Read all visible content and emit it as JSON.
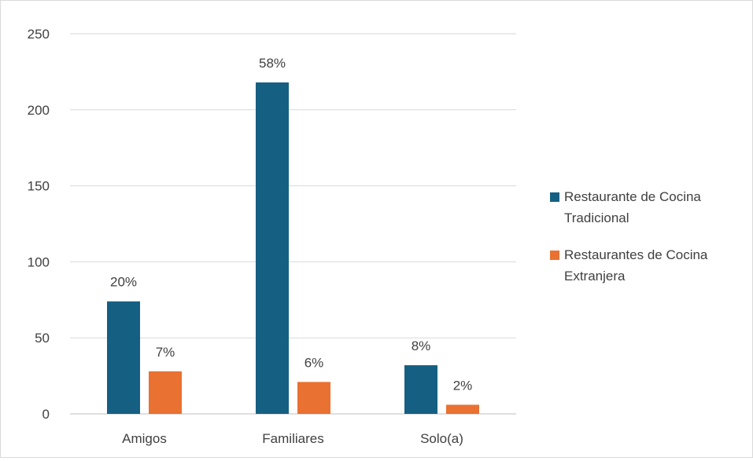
{
  "chart_data": {
    "type": "bar",
    "title": "",
    "xlabel": "",
    "ylabel": "",
    "categories": [
      "Amigos",
      "Familiares",
      "Solo(a)"
    ],
    "ylim": [
      0,
      250
    ],
    "yticks": [
      0,
      50,
      100,
      150,
      200,
      250
    ],
    "grid": true,
    "legend_position": "right",
    "series": [
      {
        "name": "Restaurante de Cocina Tradicional",
        "color": "#156082",
        "values": [
          74,
          218,
          32
        ],
        "labels": [
          "20%",
          "58%",
          "8%"
        ]
      },
      {
        "name": "Restaurantes de Cocina Extranjera",
        "color": "#E97132",
        "values": [
          28,
          21,
          6
        ],
        "labels": [
          "7%",
          "6%",
          "2%"
        ]
      }
    ]
  }
}
